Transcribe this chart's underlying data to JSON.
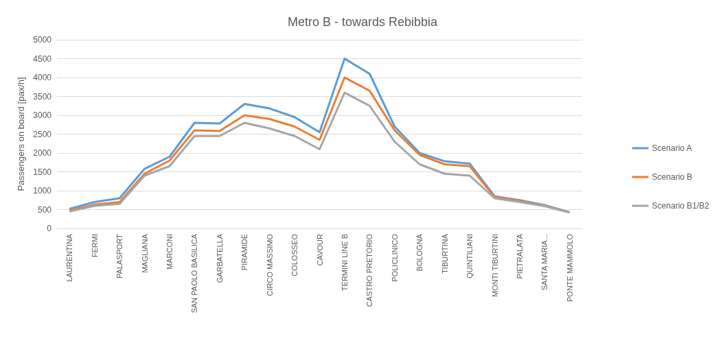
{
  "chart_data": {
    "type": "line",
    "title": "Metro B - towards Rebibbia",
    "ylabel": "Passengers on board [pax/h]",
    "categories": [
      "LAURENTINA",
      "FERMI",
      "PALASPORT",
      "MAGLIANA",
      "MARCONI",
      "SAN PAOLO BASILICA",
      "GARBATELLA",
      "PIRAMIDE",
      "CIRCO MASSIMO",
      "COLOSSEO",
      "CAVOUR",
      "TERMINI LINE B",
      "CASTRO PRETORIO",
      "POLICLINICO",
      "BOLOGNA",
      "TIBURTINA",
      "QUINTILIANI",
      "MONTI TIBURTINI",
      "PIETRALATA",
      "SANTA MARIA...",
      "PONTE MAMMOLO"
    ],
    "series": [
      {
        "name": "Scenario A",
        "color": "#5b9bd5",
        "values": [
          520,
          700,
          800,
          1580,
          1900,
          2800,
          2780,
          3300,
          3180,
          2950,
          2550,
          4500,
          4100,
          2700,
          2000,
          1780,
          1720,
          850,
          750,
          620,
          430
        ]
      },
      {
        "name": "Scenario B",
        "color": "#ed7d31",
        "values": [
          480,
          630,
          700,
          1450,
          1800,
          2600,
          2580,
          3000,
          2900,
          2700,
          2350,
          4000,
          3650,
          2600,
          1950,
          1700,
          1650,
          830,
          730,
          600,
          430
        ]
      },
      {
        "name": "Scenario B1/B2",
        "color": "#a5a5a5",
        "values": [
          450,
          600,
          650,
          1400,
          1650,
          2450,
          2450,
          2800,
          2650,
          2450,
          2100,
          3600,
          3250,
          2300,
          1700,
          1450,
          1400,
          800,
          700,
          590,
          420
        ]
      }
    ],
    "ylim": [
      0,
      5000
    ],
    "yticks": [
      0,
      500,
      1000,
      1500,
      2000,
      2500,
      3000,
      3500,
      4000,
      4500,
      5000
    ],
    "grid": "y",
    "legend": "right",
    "marker": "none",
    "line_style": "solid"
  }
}
